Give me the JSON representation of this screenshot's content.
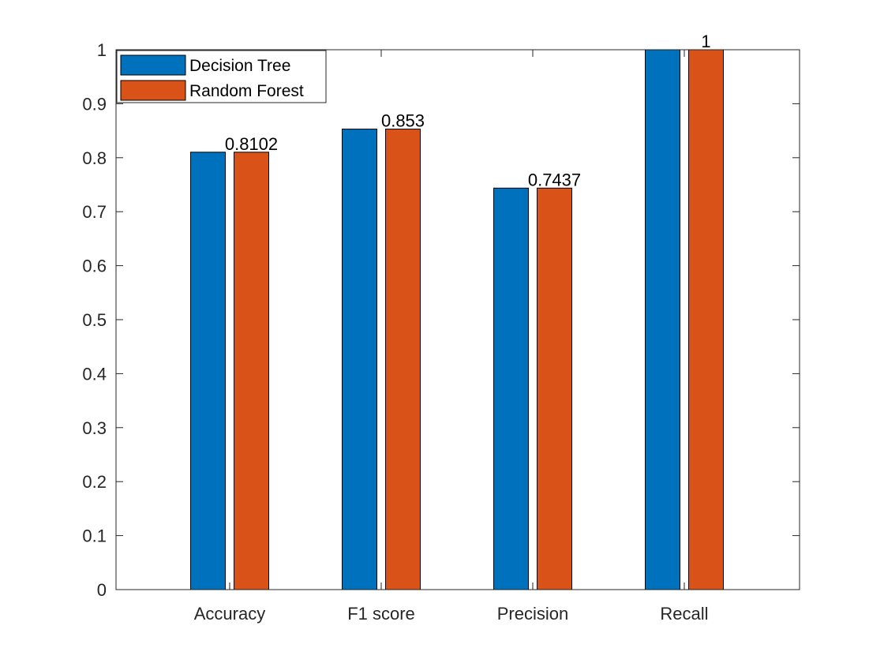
{
  "chart_data": {
    "type": "bar",
    "categories": [
      "Accuracy",
      "F1 score",
      "Precision",
      "Recall"
    ],
    "series": [
      {
        "name": "Decision Tree",
        "values": [
          0.8102,
          0.853,
          0.7437,
          1
        ],
        "color": "#0072BD"
      },
      {
        "name": "Random Forest",
        "values": [
          0.8102,
          0.853,
          0.7437,
          1
        ],
        "color": "#D95319"
      }
    ],
    "data_labels": [
      "0.8102",
      "0.853",
      "0.7437",
      "1"
    ],
    "ylim": [
      0,
      1
    ],
    "yticks": [
      "0",
      "0.1",
      "0.2",
      "0.3",
      "0.4",
      "0.5",
      "0.6",
      "0.7",
      "0.8",
      "0.9",
      "1"
    ],
    "legend_position": "top-left",
    "grid": false
  }
}
